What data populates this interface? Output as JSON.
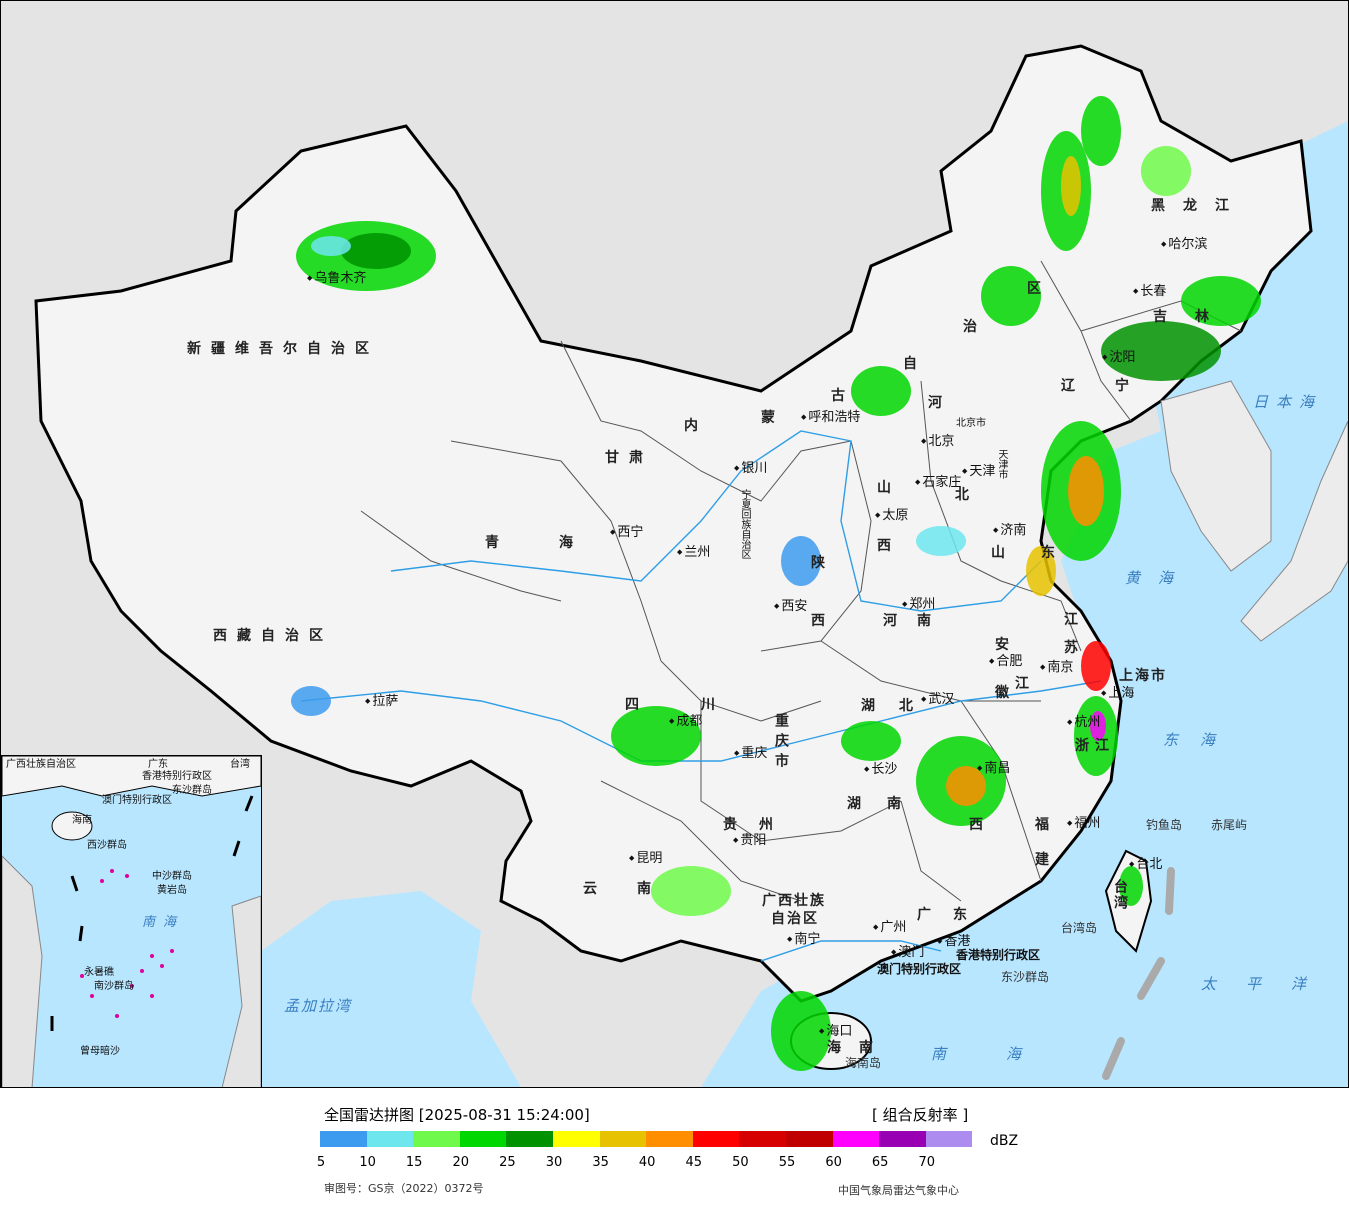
{
  "map": {
    "provinces": {
      "xinjiang": "新疆维吾尔自治区",
      "xizang": "西藏自治区",
      "qinghai": "青海",
      "gansu": "甘肃",
      "neimenggu_1": "内",
      "neimenggu_2": "蒙",
      "neimenggu_3": "古",
      "neimenggu_4": "自",
      "neimenggu_5": "治",
      "neimenggu_6": "区",
      "heilongjiang": "黑龙江",
      "jilin": "吉林",
      "liaoning": "辽宁",
      "hebei_1": "河",
      "hebei_2": "北",
      "shanxi_1": "山",
      "shanxi_2": "西",
      "shaanxi_1": "陕",
      "shaanxi_2": "西",
      "henan": "河南",
      "shandong_1": "山",
      "shandong_2": "东",
      "jiangsu_1": "江",
      "jiangsu_2": "苏",
      "anhui_1": "安",
      "anhui_2": "徽",
      "hubei": "湖北",
      "hunan_1": "湖",
      "hunan_2": "南",
      "sichuan_1": "四",
      "sichuan_2": "川",
      "chongqing": "重庆市",
      "guizhou": "贵州",
      "yunnan": "云南",
      "guangxi_1": "广西壮族",
      "guangxi_2": "自治区",
      "guangdong": "广东",
      "jiangxi_1": "江",
      "jiangxi_2": "西",
      "zhejiang": "浙江",
      "fujian_1": "福",
      "fujian_2": "建",
      "hainan": "海南",
      "taiwan": "台湾",
      "ningxia": "宁夏回族自治区",
      "shanghai": "上海市",
      "hongkong": "香港特别行政区",
      "macau": "澳门特别行政区",
      "beijing_city": "北京市",
      "tianjin_city": "天津市"
    },
    "cities": {
      "urumqi": "乌鲁木齐",
      "lhasa": "拉萨",
      "xining": "西宁",
      "lanzhou": "兰州",
      "yinchuan": "银川",
      "hohhot": "呼和浩特",
      "beijing": "北京",
      "tianjin": "天津",
      "shijiazhuang": "石家庄",
      "taiyuan": "太原",
      "jinan": "济南",
      "zhengzhou": "郑州",
      "xian": "西安",
      "hefei": "合肥",
      "nanjing": "南京",
      "shanghai": "上海",
      "hangzhou": "杭州",
      "wuhan": "武汉",
      "changsha": "长沙",
      "nanchang": "南昌",
      "fuzhou": "福州",
      "chengdu": "成都",
      "chongqing": "重庆",
      "guiyang": "贵阳",
      "kunming": "昆明",
      "nanning": "南宁",
      "guangzhou": "广州",
      "hongkong": "香港",
      "macau": "澳门",
      "haikou": "海口",
      "taipei": "台北",
      "harbin": "哈尔滨",
      "changchun": "长春",
      "shenyang": "沈阳"
    },
    "seas": {
      "japan_sea": "日本海",
      "yellow_sea": "黄海",
      "east_sea": "东海",
      "pacific": "太平洋",
      "south_sea": "南海",
      "bengal": "孟加拉湾"
    },
    "islands": {
      "diaoyu": "钓鱼岛",
      "chiwei": "赤尾屿",
      "taiwan_island": "台湾岛",
      "dongsha": "东沙群岛",
      "hainan_island": "海南岛"
    },
    "inset": {
      "south_sea": "南海",
      "zhongsha": "中沙群岛",
      "huangyan": "黄岩岛",
      "xisha": "西沙群岛",
      "nansha": "南沙群岛",
      "yongshu": "永暑礁",
      "zengmu": "曾母暗沙",
      "dongsha": "东沙群岛",
      "taiwan": "台湾",
      "guangdong": "广东",
      "hainan": "海南",
      "hk": "香港特别行政区",
      "macau": "澳门特别行政区",
      "guangxi": "广西壮族自治区"
    },
    "colors": {
      "land": "#f4f4f4",
      "outside": "#e4e4e4",
      "water": "#b8e6ff",
      "border": "#000000",
      "river": "#2e9ee6"
    }
  },
  "legend": {
    "title": "全国雷达拼图 [2025-08-31 15:24:00]",
    "product": "[ 组合反射率 ]",
    "unit": "dBZ",
    "ticks": [
      "5",
      "10",
      "15",
      "20",
      "25",
      "30",
      "35",
      "40",
      "45",
      "50",
      "55",
      "60",
      "65",
      "70"
    ],
    "colors": [
      "#3d9bef",
      "#6de6ee",
      "#6ff94a",
      "#00d600",
      "#009200",
      "#ffff00",
      "#e6c200",
      "#ff8e00",
      "#ff0000",
      "#d60000",
      "#c00000",
      "#ff00ff",
      "#9800b4",
      "#ad8cf0"
    ],
    "review_no": "审图号：GS京（2022）0372号",
    "organization": "中国气象局雷达气象中心"
  }
}
